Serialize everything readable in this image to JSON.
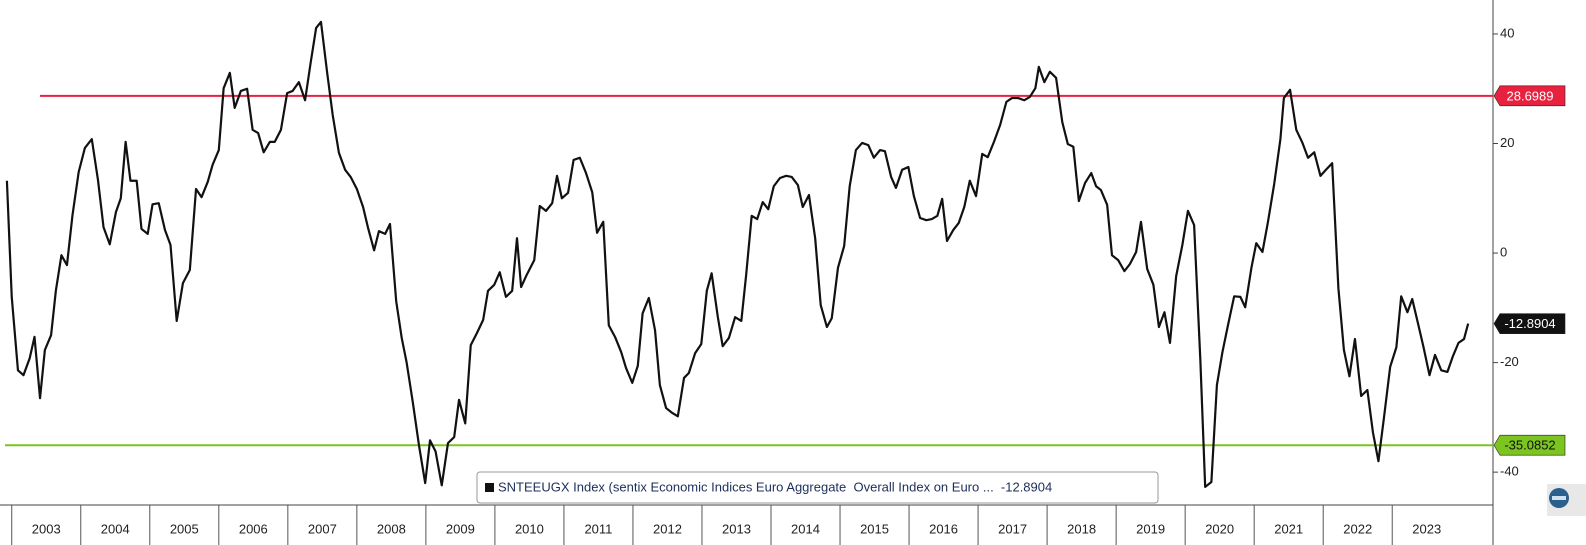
{
  "chart_data": {
    "type": "line",
    "x": [
      2002.93,
      2003.0,
      2003.09,
      2003.17,
      2003.26,
      2003.33,
      2003.41,
      2003.48,
      2003.57,
      2003.64,
      2003.72,
      2003.8,
      2003.88,
      2003.97,
      2004.06,
      2004.16,
      2004.25,
      2004.33,
      2004.42,
      2004.51,
      2004.58,
      2004.65,
      2004.72,
      2004.81,
      2004.88,
      2004.97,
      2005.04,
      2005.13,
      2005.22,
      2005.3,
      2005.39,
      2005.48,
      2005.58,
      2005.67,
      2005.75,
      2005.84,
      2005.91,
      2006.0,
      2006.07,
      2006.16,
      2006.23,
      2006.32,
      2006.41,
      2006.49,
      2006.57,
      2006.65,
      2006.74,
      2006.81,
      2006.9,
      2006.99,
      2007.07,
      2007.16,
      2007.25,
      2007.33,
      2007.41,
      2007.48,
      2007.57,
      2007.65,
      2007.74,
      2007.83,
      2007.91,
      2008.0,
      2008.09,
      2008.16,
      2008.25,
      2008.32,
      2008.41,
      2008.48,
      2008.57,
      2008.65,
      2008.72,
      2008.81,
      2008.9,
      2008.99,
      2009.06,
      2009.14,
      2009.23,
      2009.32,
      2009.41,
      2009.48,
      2009.57,
      2009.65,
      2009.74,
      2009.83,
      2009.9,
      2009.99,
      2010.07,
      2010.16,
      2010.25,
      2010.32,
      2010.38,
      2010.46,
      2010.57,
      2010.65,
      2010.74,
      2010.83,
      2010.9,
      2010.97,
      2011.06,
      2011.14,
      2011.23,
      2011.32,
      2011.41,
      2011.48,
      2011.57,
      2011.65,
      2011.74,
      2011.83,
      2011.9,
      2011.99,
      2012.07,
      2012.14,
      2012.23,
      2012.32,
      2012.39,
      2012.48,
      2012.57,
      2012.65,
      2012.74,
      2012.81,
      2012.9,
      2012.99,
      2013.07,
      2013.14,
      2013.23,
      2013.3,
      2013.39,
      2013.48,
      2013.57,
      2013.64,
      2013.72,
      2013.8,
      2013.88,
      2013.96,
      2014.04,
      2014.13,
      2014.22,
      2014.3,
      2014.39,
      2014.46,
      2014.55,
      2014.64,
      2014.72,
      2014.81,
      2014.88,
      2014.97,
      2015.06,
      2015.14,
      2015.23,
      2015.32,
      2015.41,
      2015.49,
      2015.58,
      2015.65,
      2015.74,
      2015.81,
      2015.9,
      2015.99,
      2016.07,
      2016.16,
      2016.25,
      2016.33,
      2016.41,
      2016.48,
      2016.55,
      2016.64,
      2016.72,
      2016.8,
      2016.88,
      2016.97,
      2017.06,
      2017.14,
      2017.23,
      2017.32,
      2017.41,
      2017.49,
      2017.58,
      2017.67,
      2017.75,
      2017.83,
      2017.88,
      2017.96,
      2018.04,
      2018.13,
      2018.22,
      2018.3,
      2018.38,
      2018.46,
      2018.55,
      2018.64,
      2018.71,
      2018.78,
      2018.87,
      2018.94,
      2019.03,
      2019.12,
      2019.2,
      2019.29,
      2019.36,
      2019.45,
      2019.54,
      2019.62,
      2019.7,
      2019.78,
      2019.87,
      2019.96,
      2020.04,
      2020.13,
      2020.22,
      2020.29,
      2020.38,
      2020.46,
      2020.54,
      2020.62,
      2020.71,
      2020.8,
      2020.87,
      2020.96,
      2021.03,
      2021.12,
      2021.2,
      2021.29,
      2021.38,
      2021.43,
      2021.52,
      2021.61,
      2021.7,
      2021.78,
      2021.87,
      2021.96,
      2022.04,
      2022.13,
      2022.22,
      2022.3,
      2022.38,
      2022.46,
      2022.55,
      2022.64,
      2022.72,
      2022.8,
      2022.88,
      2022.97,
      2023.06,
      2023.13,
      2023.22,
      2023.29,
      2023.38,
      2023.45,
      2023.54,
      2023.62,
      2023.71,
      2023.8,
      2023.88,
      2023.96,
      2024.04,
      2024.1
    ],
    "series": [
      {
        "name": "SNTEEUGX Index (sentix Economic Indices Euro Aggregate  Overall Index on Euro ...  -12.8904",
        "color": "#111111",
        "values": [
          13.2,
          -8.0,
          -21.4,
          -22.3,
          -19.2,
          -15.3,
          -26.5,
          -17.7,
          -15.0,
          -6.8,
          -0.4,
          -2.2,
          6.9,
          14.8,
          19.2,
          20.8,
          13.3,
          4.7,
          1.6,
          7.5,
          10.0,
          20.3,
          13.2,
          13.2,
          4.4,
          3.5,
          8.9,
          9.1,
          4.2,
          1.5,
          -12.4,
          -5.5,
          -3.1,
          11.7,
          10.2,
          13.0,
          16.1,
          18.8,
          30.1,
          32.9,
          26.5,
          29.6,
          30.0,
          22.5,
          21.9,
          18.4,
          20.3,
          20.3,
          22.5,
          29.2,
          29.6,
          31.2,
          27.9,
          34.7,
          41.1,
          42.2,
          32.9,
          25.2,
          18.3,
          15.2,
          13.9,
          11.7,
          8.4,
          4.7,
          0.5,
          4.0,
          3.5,
          5.3,
          -8.8,
          -15.5,
          -19.9,
          -27.2,
          -35.1,
          -42.0,
          -34.2,
          -36.2,
          -42.4,
          -34.7,
          -33.6,
          -26.8,
          -31.1,
          -16.8,
          -14.6,
          -12.2,
          -6.9,
          -5.8,
          -3.5,
          -8.0,
          -6.9,
          2.7,
          -6.2,
          -4.0,
          -1.3,
          8.6,
          7.7,
          9.1,
          14.1,
          10.0,
          11.0,
          17.0,
          17.4,
          14.6,
          11.1,
          3.7,
          5.7,
          -13.2,
          -15.3,
          -18.1,
          -21.0,
          -23.7,
          -20.6,
          -11.0,
          -8.2,
          -14.1,
          -24.1,
          -28.3,
          -29.2,
          -29.8,
          -22.8,
          -21.9,
          -18.3,
          -16.6,
          -6.9,
          -3.7,
          -11.7,
          -17.0,
          -15.5,
          -11.7,
          -12.4,
          -4.0,
          6.8,
          6.2,
          9.3,
          8.0,
          12.2,
          13.7,
          14.1,
          13.9,
          12.4,
          8.4,
          10.6,
          2.7,
          -9.5,
          -13.5,
          -11.9,
          -2.7,
          1.3,
          12.2,
          18.8,
          20.1,
          19.7,
          17.4,
          18.8,
          18.6,
          13.9,
          11.9,
          15.2,
          15.7,
          10.4,
          6.4,
          6.0,
          6.2,
          6.8,
          9.9,
          2.2,
          4.2,
          5.5,
          8.4,
          13.2,
          10.4,
          18.1,
          17.5,
          20.3,
          23.4,
          27.6,
          28.3,
          28.3,
          27.9,
          28.5,
          30.1,
          34.0,
          31.2,
          33.1,
          32.0,
          23.9,
          19.9,
          19.4,
          9.5,
          12.8,
          14.6,
          12.2,
          11.5,
          8.8,
          -0.4,
          -1.3,
          -3.3,
          -2.0,
          0.2,
          5.7,
          -2.9,
          -5.8,
          -13.5,
          -10.8,
          -16.4,
          -4.2,
          1.5,
          7.7,
          5.1,
          -19.5,
          -42.7,
          -41.8,
          -24.1,
          -18.1,
          -13.2,
          -7.9,
          -8.0,
          -9.9,
          -2.7,
          1.8,
          0.2,
          5.7,
          12.6,
          20.8,
          28.3,
          29.8,
          22.5,
          20.1,
          17.4,
          18.4,
          14.1,
          15.2,
          16.4,
          -6.4,
          -17.7,
          -22.5,
          -15.7,
          -26.1,
          -25.0,
          -32.7,
          -38.0,
          -30.1,
          -20.8,
          -17.2,
          -7.9,
          -10.8,
          -8.4,
          -13.2,
          -17.0,
          -22.3,
          -18.6,
          -21.4,
          -21.7,
          -18.8,
          -16.4,
          -15.7,
          -12.8904
        ]
      }
    ],
    "hlines": [
      {
        "value": 28.6989,
        "color": "#e8213f"
      },
      {
        "value": -35.0852,
        "color": "#7cc520"
      }
    ],
    "xlim": [
      2002.83,
      2024.46
    ],
    "xticks": [
      2003,
      2004,
      2005,
      2006,
      2007,
      2008,
      2009,
      2010,
      2011,
      2012,
      2013,
      2014,
      2015,
      2016,
      2017,
      2018,
      2019,
      2020,
      2021,
      2022,
      2023
    ],
    "ylim": [
      -46,
      46.2
    ],
    "yticks": [
      40,
      20,
      0,
      -20,
      -40
    ]
  }
}
